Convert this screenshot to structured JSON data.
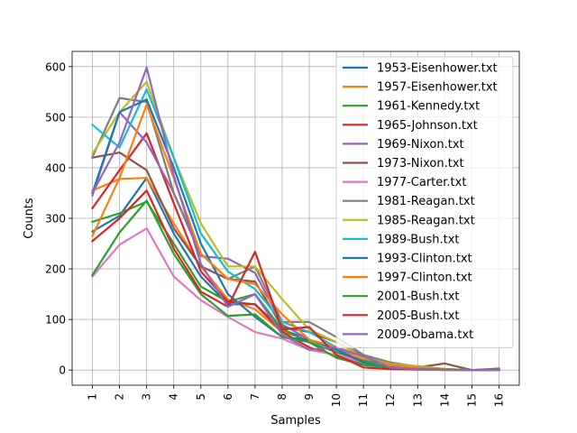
{
  "chart_data": {
    "type": "line",
    "xlabel": "Samples",
    "ylabel": "Counts",
    "x": [
      1,
      2,
      3,
      4,
      5,
      6,
      7,
      8,
      9,
      10,
      11,
      12,
      13,
      14,
      15,
      16
    ],
    "x_tick_labels": [
      "1",
      "2",
      "3",
      "4",
      "5",
      "6",
      "7",
      "8",
      "9",
      "10",
      "11",
      "12",
      "13",
      "14",
      "15",
      "16"
    ],
    "ylim": [
      -30,
      630
    ],
    "y_ticks": [
      0,
      100,
      200,
      300,
      400,
      500,
      600
    ],
    "y_tick_labels": [
      "0",
      "100",
      "200",
      "300",
      "400",
      "500",
      "600"
    ],
    "grid": true,
    "legend_position": "top-right",
    "series": [
      {
        "name": "1953-Eisenhower.txt",
        "color": "#1f77b4",
        "values": [
          274,
          305,
          380,
          270,
          185,
          130,
          130,
          80,
          60,
          40,
          20,
          10,
          2,
          1,
          0,
          1
        ]
      },
      {
        "name": "1957-Eisenhower.txt",
        "color": "#ff7f0e",
        "values": [
          355,
          378,
          380,
          290,
          205,
          140,
          120,
          75,
          60,
          40,
          20,
          15,
          5,
          2,
          0,
          1
        ]
      },
      {
        "name": "1961-Kennedy.txt",
        "color": "#2ca02c",
        "values": [
          293,
          310,
          333,
          250,
          165,
          135,
          150,
          80,
          55,
          35,
          18,
          10,
          3,
          1,
          0,
          0
        ]
      },
      {
        "name": "1965-Johnson.txt",
        "color": "#d62728",
        "values": [
          320,
          395,
          468,
          330,
          195,
          135,
          130,
          75,
          45,
          28,
          14,
          8,
          3,
          1,
          0,
          0
        ]
      },
      {
        "name": "1969-Nixon.txt",
        "color": "#9467bd",
        "values": [
          345,
          510,
          450,
          350,
          225,
          220,
          192,
          90,
          60,
          40,
          27,
          10,
          3,
          1,
          0,
          0
        ]
      },
      {
        "name": "1973-Nixon.txt",
        "color": "#8c564b",
        "values": [
          420,
          430,
          395,
          280,
          205,
          180,
          175,
          85,
          75,
          55,
          27,
          12,
          5,
          13,
          0,
          3
        ]
      },
      {
        "name": "1977-Carter.txt",
        "color": "#e377c2",
        "values": [
          185,
          248,
          280,
          185,
          138,
          105,
          75,
          62,
          40,
          30,
          15,
          7,
          2,
          1,
          0,
          0
        ]
      },
      {
        "name": "1981-Reagan.txt",
        "color": "#7f7f7f",
        "values": [
          421,
          538,
          530,
          350,
          230,
          180,
          205,
          95,
          95,
          65,
          30,
          15,
          7,
          2,
          0,
          2
        ]
      },
      {
        "name": "1985-Reagan.txt",
        "color": "#bcbd22",
        "values": [
          428,
          510,
          570,
          420,
          290,
          205,
          205,
          140,
          80,
          55,
          25,
          12,
          8,
          2,
          0,
          0
        ]
      },
      {
        "name": "1989-Bush.txt",
        "color": "#17becf",
        "values": [
          485,
          440,
          555,
          420,
          270,
          195,
          160,
          95,
          75,
          45,
          25,
          10,
          5,
          2,
          0,
          0
        ]
      },
      {
        "name": "1993-Clinton.txt",
        "color": "#1f77b4",
        "values": [
          350,
          510,
          535,
          400,
          250,
          150,
          105,
          65,
          60,
          40,
          15,
          5,
          2,
          1,
          0,
          0
        ]
      },
      {
        "name": "1997-Clinton.txt",
        "color": "#ff7f0e",
        "values": [
          265,
          380,
          525,
          380,
          230,
          180,
          170,
          110,
          60,
          45,
          25,
          10,
          5,
          2,
          0,
          0
        ]
      },
      {
        "name": "2001-Bush.txt",
        "color": "#2ca02c",
        "values": [
          188,
          272,
          335,
          230,
          150,
          107,
          110,
          65,
          55,
          24,
          10,
          5,
          2,
          1,
          0,
          0
        ]
      },
      {
        "name": "2005-Bush.txt",
        "color": "#d62728",
        "values": [
          255,
          300,
          355,
          240,
          155,
          125,
          234,
          80,
          85,
          30,
          5,
          2,
          1,
          0,
          0,
          0
        ]
      },
      {
        "name": "2009-Obama.txt",
        "color": "#9467bd",
        "values": [
          350,
          450,
          598,
          385,
          210,
          125,
          150,
          70,
          40,
          45,
          27,
          5,
          2,
          0,
          0,
          0
        ]
      }
    ]
  }
}
